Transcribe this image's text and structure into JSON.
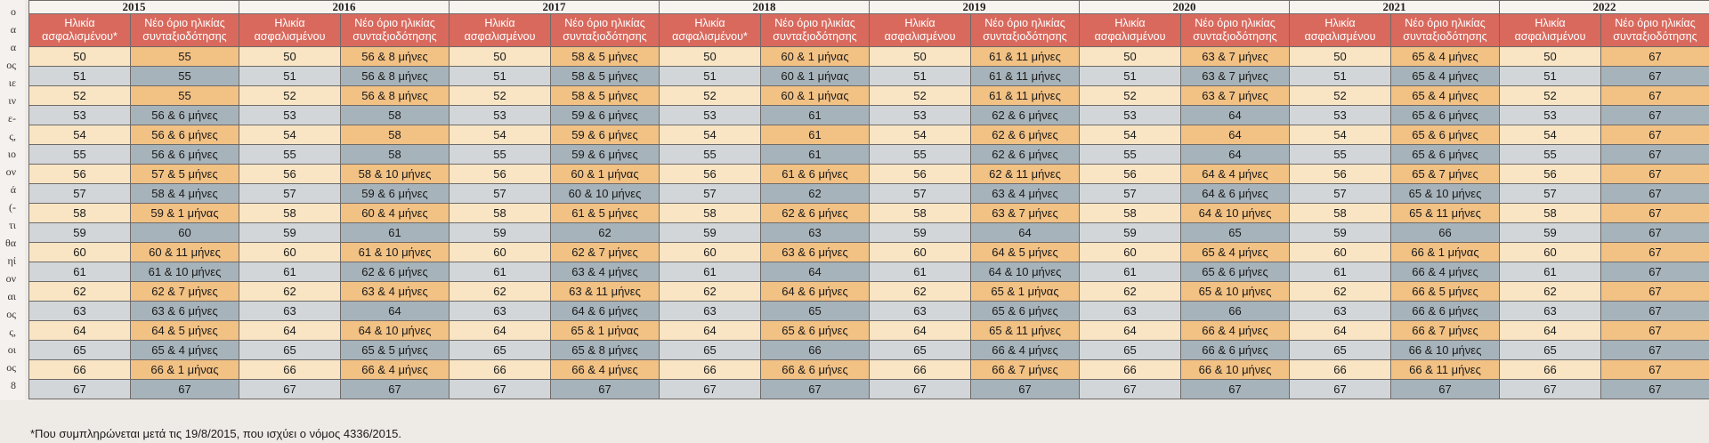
{
  "left_margin_fragments": [
    "ο",
    "α",
    "α",
    "ος",
    "ιε",
    "ιν",
    "ε-",
    "ς,",
    "ιο",
    "ον",
    "ά",
    "(-",
    "τι",
    "θα",
    "ηί",
    "ον",
    "αι",
    "ος",
    "ς,",
    "οι",
    "ος",
    "8"
  ],
  "header": {
    "years": [
      "2015",
      "2016",
      "2017",
      "2018",
      "2019",
      "2020",
      "2021",
      "2022"
    ],
    "age_col_labels": [
      "Ηλικία ασφαλισμένου*",
      "Ηλικία ασφαλισμένου",
      "Ηλικία ασφαλισμένου",
      "Ηλικία ασφαλισμένου*",
      "Ηλικία ασφαλισμένου",
      "Ηλικία ασφαλισμένου",
      "Ηλικία ασφαλισμένου",
      "Ηλικία ασφαλισμένου"
    ],
    "limit_col_label": "Νέο όριο ηλικίας συνταξιοδότησης"
  },
  "rows": [
    [
      "50",
      "55",
      "50",
      "56 & 8 μήνες",
      "50",
      "58 & 5 μήνες",
      "50",
      "60 & 1 μήνας",
      "50",
      "61 & 11 μήνες",
      "50",
      "63 & 7 μήνες",
      "50",
      "65 & 4 μήνες",
      "50",
      "67"
    ],
    [
      "51",
      "55",
      "51",
      "56 & 8 μήνες",
      "51",
      "58 & 5 μήνες",
      "51",
      "60 & 1 μήνας",
      "51",
      "61 & 11 μήνες",
      "51",
      "63 & 7 μήνες",
      "51",
      "65 & 4 μήνες",
      "51",
      "67"
    ],
    [
      "52",
      "55",
      "52",
      "56 & 8 μήνες",
      "52",
      "58 & 5 μήνες",
      "52",
      "60 & 1 μήνας",
      "52",
      "61 & 11 μήνες",
      "52",
      "63 & 7 μήνες",
      "52",
      "65 & 4 μήνες",
      "52",
      "67"
    ],
    [
      "53",
      "56 & 6 μήνες",
      "53",
      "58",
      "53",
      "59 & 6 μήνες",
      "53",
      "61",
      "53",
      "62 & 6 μήνες",
      "53",
      "64",
      "53",
      "65 & 6 μήνες",
      "53",
      "67"
    ],
    [
      "54",
      "56 & 6 μήνες",
      "54",
      "58",
      "54",
      "59 & 6 μήνες",
      "54",
      "61",
      "54",
      "62 & 6 μήνες",
      "54",
      "64",
      "54",
      "65 & 6 μήνες",
      "54",
      "67"
    ],
    [
      "55",
      "56 & 6 μήνες",
      "55",
      "58",
      "55",
      "59 & 6 μήνες",
      "55",
      "61",
      "55",
      "62 & 6 μήνες",
      "55",
      "64",
      "55",
      "65 & 6 μήνες",
      "55",
      "67"
    ],
    [
      "56",
      "57 & 5 μήνες",
      "56",
      "58 & 10 μήνες",
      "56",
      "60 & 1 μήνας",
      "56",
      "61 & 6 μήνες",
      "56",
      "62 & 11 μήνες",
      "56",
      "64 & 4 μήνες",
      "56",
      "65 & 7 μήνες",
      "56",
      "67"
    ],
    [
      "57",
      "58 & 4 μήνες",
      "57",
      "59 & 6 μήνες",
      "57",
      "60 & 10 μήνες",
      "57",
      "62",
      "57",
      "63 & 4 μήνες",
      "57",
      "64 & 6 μήνες",
      "57",
      "65 & 10 μήνες",
      "57",
      "67"
    ],
    [
      "58",
      "59 & 1 μήνας",
      "58",
      "60 & 4 μήνες",
      "58",
      "61 & 5 μήνες",
      "58",
      "62 & 6 μήνες",
      "58",
      "63 & 7 μήνες",
      "58",
      "64 & 10 μήνες",
      "58",
      "65 & 11 μήνες",
      "58",
      "67"
    ],
    [
      "59",
      "60",
      "59",
      "61",
      "59",
      "62",
      "59",
      "63",
      "59",
      "64",
      "59",
      "65",
      "59",
      "66",
      "59",
      "67"
    ],
    [
      "60",
      "60 & 11 μήνες",
      "60",
      "61 & 10 μήνες",
      "60",
      "62 & 7 μήνες",
      "60",
      "63 & 6 μήνες",
      "60",
      "64 & 5 μήνες",
      "60",
      "65 & 4 μήνες",
      "60",
      "66 & 1 μήνας",
      "60",
      "67"
    ],
    [
      "61",
      "61 & 10 μήνες",
      "61",
      "62 & 6 μήνες",
      "61",
      "63 & 4 μήνες",
      "61",
      "64",
      "61",
      "64 & 10 μήνες",
      "61",
      "65 & 6 μήνες",
      "61",
      "66 & 4 μήνες",
      "61",
      "67"
    ],
    [
      "62",
      "62 & 7 μήνες",
      "62",
      "63 & 4 μήνες",
      "62",
      "63 & 11 μήνες",
      "62",
      "64 & 6 μήνες",
      "62",
      "65 & 1 μήνας",
      "62",
      "65 & 10 μήνες",
      "62",
      "66 & 5 μήνες",
      "62",
      "67"
    ],
    [
      "63",
      "63 & 6 μήνες",
      "63",
      "64",
      "63",
      "64 & 6 μήνες",
      "63",
      "65",
      "63",
      "65 & 6 μήνες",
      "63",
      "66",
      "63",
      "66 & 6 μήνες",
      "63",
      "67"
    ],
    [
      "64",
      "64 & 5 μήνες",
      "64",
      "64 & 10 μήνες",
      "64",
      "65 & 1 μήνας",
      "64",
      "65 & 6 μήνες",
      "64",
      "65 & 11 μήνες",
      "64",
      "66 & 4 μήνες",
      "64",
      "66 & 7 μήνες",
      "64",
      "67"
    ],
    [
      "65",
      "65 & 4 μήνες",
      "65",
      "65 & 5 μήνες",
      "65",
      "65 & 8 μήνες",
      "65",
      "66",
      "65",
      "66 & 4 μήνες",
      "65",
      "66 & 6 μήνες",
      "65",
      "66 & 10 μήνες",
      "65",
      "67"
    ],
    [
      "66",
      "66 & 1 μήνας",
      "66",
      "66 & 4 μήνες",
      "66",
      "66 & 4 μήνες",
      "66",
      "66 & 6 μήνες",
      "66",
      "66 & 7 μήνες",
      "66",
      "66 & 10 μήνες",
      "66",
      "66 & 11 μήνες",
      "66",
      "67"
    ],
    [
      "67",
      "67",
      "67",
      "67",
      "67",
      "67",
      "67",
      "67",
      "67",
      "67",
      "67",
      "67",
      "67",
      "67",
      "67",
      "67"
    ]
  ],
  "footnote": "*Που συμπληρώνεται μετά τις 19/8/2015, που ισχύει ο νόμος 4336/2015."
}
